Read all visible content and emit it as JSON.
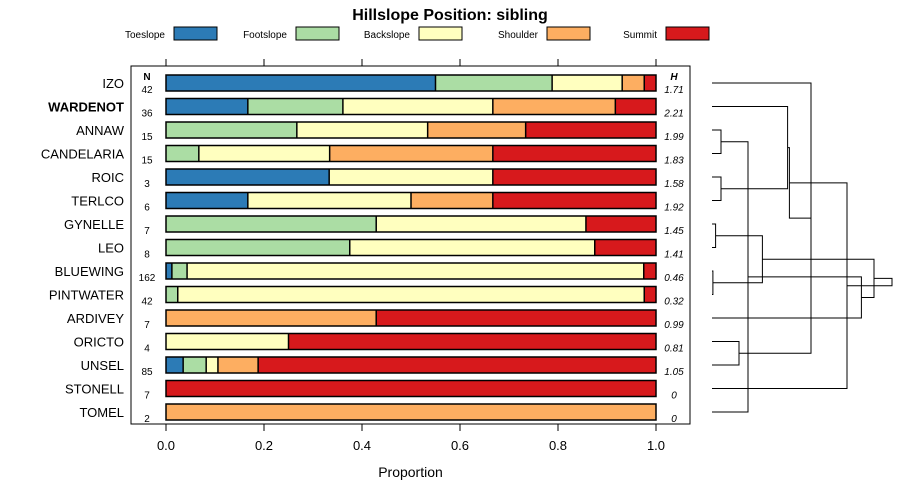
{
  "chart_data": {
    "type": "bar",
    "orientation": "horizontal",
    "stacked": true,
    "title": "Hillslope Position: sibling",
    "xlabel": "Proportion",
    "ylabel": "",
    "xlim": [
      0,
      1
    ],
    "xticks": [
      "0.0",
      "0.2",
      "0.4",
      "0.6",
      "0.8",
      "1.0"
    ],
    "legend_position": "top",
    "n_header": "N",
    "h_header": "H",
    "highlighted_category": "WARDENOT",
    "legend": [
      {
        "name": "Toeslope",
        "color": "#2C7BB6"
      },
      {
        "name": "Footslope",
        "color": "#ABDDA4"
      },
      {
        "name": "Backslope",
        "color": "#FFFFBF"
      },
      {
        "name": "Shoulder",
        "color": "#FDAE61"
      },
      {
        "name": "Summit",
        "color": "#D7191C"
      }
    ],
    "categories": [
      "IZO",
      "WARDENOT",
      "ANNAW",
      "CANDELARIA",
      "ROIC",
      "TERLCO",
      "GYNELLE",
      "LEO",
      "BLUEWING",
      "PINTWATER",
      "ARDIVEY",
      "ORICTO",
      "UNSEL",
      "STONELL",
      "TOMEL"
    ],
    "n": [
      "42",
      "36",
      "15",
      "15",
      "3",
      "6",
      "7",
      "8",
      "162",
      "42",
      "7",
      "4",
      "85",
      "7",
      "2"
    ],
    "h": [
      "1.71",
      "2.21",
      "1.99",
      "1.83",
      "1.58",
      "1.92",
      "1.45",
      "1.41",
      "0.46",
      "0.32",
      "0.99",
      "0.81",
      "1.05",
      "0",
      "0"
    ],
    "series": [
      {
        "name": "Toeslope",
        "values": [
          0.55,
          0.167,
          0.0,
          0.0,
          0.333,
          0.167,
          0.0,
          0.0,
          0.012,
          0.0,
          0.0,
          0.0,
          0.035,
          0.0,
          0.0
        ]
      },
      {
        "name": "Footslope",
        "values": [
          0.238,
          0.194,
          0.267,
          0.067,
          0.0,
          0.0,
          0.429,
          0.375,
          0.031,
          0.024,
          0.0,
          0.0,
          0.047,
          0.0,
          0.0
        ]
      },
      {
        "name": "Backslope",
        "values": [
          0.143,
          0.306,
          0.267,
          0.267,
          0.334,
          0.333,
          0.428,
          0.5,
          0.932,
          0.952,
          0.0,
          0.25,
          0.024,
          0.0,
          0.0
        ]
      },
      {
        "name": "Shoulder",
        "values": [
          0.045,
          0.25,
          0.2,
          0.333,
          0.0,
          0.167,
          0.0,
          0.0,
          0.0,
          0.0,
          0.429,
          0.0,
          0.082,
          0.0,
          1.0
        ]
      },
      {
        "name": "Summit",
        "values": [
          0.024,
          0.083,
          0.266,
          0.333,
          0.333,
          0.333,
          0.143,
          0.125,
          0.025,
          0.024,
          0.571,
          0.75,
          0.812,
          1.0,
          0.0
        ]
      }
    ],
    "dendrogram": {
      "leaves": [
        "IZO",
        "WARDENOT",
        "ANNAW",
        "CANDELARIA",
        "ROIC",
        "TERLCO",
        "GYNELLE",
        "LEO",
        "BLUEWING",
        "PINTWATER",
        "ARDIVEY",
        "ORICTO",
        "UNSEL",
        "STONELL",
        "TOMEL"
      ],
      "merges": [
        [
          3,
          4,
          0.05
        ],
        [
          5,
          6,
          0.05
        ],
        [
          7,
          8,
          0.02
        ],
        [
          9,
          10,
          0.005
        ],
        [
          15,
          16,
          0.2
        ],
        [
          12,
          13,
          0.15
        ],
        [
          2,
          17,
          0.42
        ],
        [
          1,
          21,
          0.55
        ],
        [
          19,
          18,
          0.28
        ],
        [
          11,
          20,
          0.83
        ],
        [
          23,
          22,
          0.43
        ],
        [
          14,
          26,
          0.75
        ],
        [
          24,
          25,
          0.9
        ],
        [
          27,
          28,
          1.0
        ]
      ]
    }
  }
}
